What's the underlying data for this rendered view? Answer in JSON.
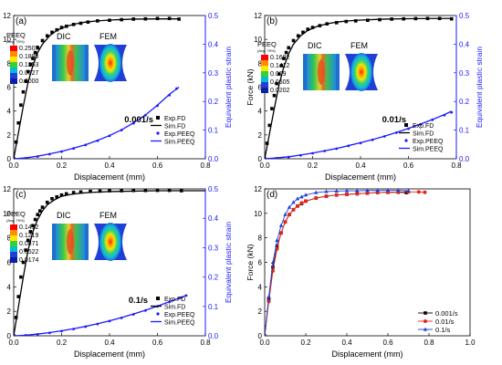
{
  "chart_data": [
    {
      "type": "scatter",
      "panel_label": "(a)",
      "rate_label": "0.001/s",
      "xlabel": "Displacement (mm)",
      "ylabel": "",
      "ylabel_right": "Equivalent plastic strain",
      "xlim": [
        0,
        0.8
      ],
      "ylim": [
        0,
        12
      ],
      "ylim_right": [
        0,
        0.5
      ],
      "x_ticks": [
        "0.0",
        "0.2",
        "0.4",
        "0.6",
        "0.8"
      ],
      "y_ticks": [
        "0",
        "2",
        "4",
        "6",
        "8",
        "10",
        "12"
      ],
      "y_ticks_right": [
        "0.0",
        "0.1",
        "0.2",
        "0.3",
        "0.4",
        "0.5"
      ],
      "legend": [
        "Exp.FD",
        "Sim.FD",
        "Exp.PEEQ",
        "Sim.PEEQ"
      ],
      "inset": {
        "title": "PEEQ",
        "subtitle": "(Avg: 75%)",
        "dic_label": "DIC",
        "fem_label": "FEM",
        "contour_values": [
          "0.2507",
          "0.1880",
          "0.1253",
          "0.0627",
          "0.0000"
        ]
      },
      "series": [
        {
          "name": "Exp.FD",
          "axis": "left",
          "style": "square",
          "x": [
            0.0,
            0.01,
            0.02,
            0.03,
            0.04,
            0.05,
            0.06,
            0.07,
            0.08,
            0.09,
            0.1,
            0.12,
            0.14,
            0.16,
            0.18,
            0.2,
            0.22,
            0.25,
            0.28,
            0.31,
            0.35,
            0.4,
            0.45,
            0.5,
            0.55,
            0.6,
            0.65,
            0.69
          ],
          "y": [
            0.0,
            1.4,
            3.0,
            4.5,
            5.6,
            6.5,
            7.3,
            7.9,
            8.4,
            8.9,
            9.3,
            9.9,
            10.3,
            10.6,
            10.8,
            11.0,
            11.1,
            11.25,
            11.35,
            11.45,
            11.55,
            11.6,
            11.65,
            11.7,
            11.72,
            11.75,
            11.75,
            11.7
          ]
        },
        {
          "name": "Sim.FD",
          "axis": "left",
          "style": "line",
          "x": [
            0.0,
            0.02,
            0.04,
            0.06,
            0.08,
            0.1,
            0.12,
            0.15,
            0.18,
            0.22,
            0.26,
            0.3,
            0.35,
            0.4,
            0.5,
            0.6,
            0.69
          ],
          "y": [
            0.0,
            2.2,
            4.4,
            6.4,
            7.8,
            8.9,
            9.6,
            10.3,
            10.75,
            11.1,
            11.3,
            11.45,
            11.55,
            11.62,
            11.7,
            11.72,
            11.72
          ]
        },
        {
          "name": "Exp.PEEQ",
          "axis": "right",
          "style": "point",
          "x": [
            0.0,
            0.05,
            0.1,
            0.15,
            0.2,
            0.25,
            0.3,
            0.35,
            0.4,
            0.45,
            0.5,
            0.55,
            0.6,
            0.65,
            0.68
          ],
          "y": [
            0.0,
            0.002,
            0.008,
            0.016,
            0.025,
            0.036,
            0.048,
            0.063,
            0.08,
            0.1,
            0.124,
            0.152,
            0.185,
            0.222,
            0.245
          ]
        },
        {
          "name": "Sim.PEEQ",
          "axis": "right",
          "style": "line",
          "x": [
            0.0,
            0.05,
            0.1,
            0.15,
            0.2,
            0.25,
            0.3,
            0.35,
            0.4,
            0.45,
            0.5,
            0.55,
            0.6,
            0.65,
            0.69
          ],
          "y": [
            0.0,
            0.003,
            0.009,
            0.017,
            0.026,
            0.037,
            0.049,
            0.064,
            0.081,
            0.101,
            0.125,
            0.153,
            0.187,
            0.225,
            0.25
          ]
        }
      ]
    },
    {
      "type": "scatter",
      "panel_label": "(b)",
      "rate_label": "0.01/s",
      "xlabel": "Displacement (mm)",
      "ylabel": "Force (kN)",
      "ylabel_right": "Equivalent plastic strain",
      "xlim": [
        0,
        0.8
      ],
      "ylim": [
        0,
        12
      ],
      "ylim_right": [
        0,
        0.5
      ],
      "x_ticks": [
        "0.0",
        "0.2",
        "0.4",
        "0.6",
        "0.8"
      ],
      "y_ticks": [
        "0",
        "2",
        "4",
        "6",
        "8",
        "10",
        "12"
      ],
      "y_ticks_right": [
        "0.0",
        "0.1",
        "0.2",
        "0.3",
        "0.4",
        "0.5"
      ],
      "legend": [
        "Exp.FD",
        "Sim.FD",
        "Exp.PEEQ",
        "Sim.PEEQ"
      ],
      "inset": {
        "title": "PEEQ",
        "subtitle": "(Avg: 75%)",
        "dic_label": "DIC",
        "fem_label": "FEM",
        "contour_values": [
          "0.1692",
          "0.1412",
          "0.009",
          "0.0605",
          "0.0202"
        ]
      },
      "series": [
        {
          "name": "Exp.FD",
          "axis": "left",
          "style": "square",
          "x": [
            0.0,
            0.01,
            0.02,
            0.03,
            0.04,
            0.05,
            0.06,
            0.07,
            0.08,
            0.09,
            0.1,
            0.12,
            0.14,
            0.16,
            0.18,
            0.2,
            0.23,
            0.26,
            0.3,
            0.34,
            0.38,
            0.43,
            0.48,
            0.53,
            0.58,
            0.63,
            0.68,
            0.73,
            0.78
          ],
          "y": [
            0.0,
            1.3,
            2.8,
            4.2,
            5.3,
            6.3,
            7.1,
            7.8,
            8.4,
            8.9,
            9.3,
            9.9,
            10.3,
            10.6,
            10.85,
            11.0,
            11.15,
            11.3,
            11.4,
            11.5,
            11.55,
            11.6,
            11.65,
            11.7,
            11.72,
            11.74,
            11.75,
            11.75,
            11.72
          ]
        },
        {
          "name": "Sim.FD",
          "axis": "left",
          "style": "line",
          "x": [
            0.0,
            0.02,
            0.04,
            0.06,
            0.08,
            0.1,
            0.12,
            0.15,
            0.18,
            0.22,
            0.26,
            0.3,
            0.35,
            0.4,
            0.5,
            0.6,
            0.7,
            0.78
          ],
          "y": [
            0.0,
            2.1,
            4.2,
            6.2,
            7.7,
            8.8,
            9.6,
            10.3,
            10.75,
            11.1,
            11.3,
            11.45,
            11.55,
            11.62,
            11.7,
            11.73,
            11.75,
            11.75
          ]
        },
        {
          "name": "Exp.PEEQ",
          "axis": "right",
          "style": "point",
          "x": [
            0.0,
            0.05,
            0.1,
            0.15,
            0.2,
            0.25,
            0.3,
            0.35,
            0.4,
            0.45,
            0.5,
            0.55,
            0.6,
            0.65,
            0.7,
            0.75,
            0.78
          ],
          "y": [
            0.0,
            0.002,
            0.006,
            0.012,
            0.019,
            0.027,
            0.035,
            0.045,
            0.055,
            0.066,
            0.078,
            0.091,
            0.105,
            0.12,
            0.136,
            0.152,
            0.162
          ]
        },
        {
          "name": "Sim.PEEQ",
          "axis": "right",
          "style": "line",
          "x": [
            0.0,
            0.05,
            0.1,
            0.15,
            0.2,
            0.25,
            0.3,
            0.35,
            0.4,
            0.45,
            0.5,
            0.55,
            0.6,
            0.65,
            0.7,
            0.75,
            0.78
          ],
          "y": [
            0.0,
            0.003,
            0.007,
            0.013,
            0.02,
            0.028,
            0.036,
            0.046,
            0.056,
            0.067,
            0.079,
            0.092,
            0.106,
            0.121,
            0.137,
            0.154,
            0.166
          ]
        }
      ]
    },
    {
      "type": "scatter",
      "panel_label": "(c)",
      "rate_label": "0.1/s",
      "xlabel": "Displacement (mm)",
      "ylabel": "",
      "ylabel_right": "Equivalent plastic strain",
      "xlim": [
        0,
        0.8
      ],
      "ylim": [
        0,
        12
      ],
      "ylim_right": [
        0,
        0.5
      ],
      "x_ticks": [
        "0.0",
        "0.2",
        "0.4",
        "0.6",
        "0.8"
      ],
      "y_ticks": [
        "0",
        "2",
        "4",
        "6",
        "8",
        "10",
        "12"
      ],
      "y_ticks_right": [
        "0.0",
        "0.1",
        "0.2",
        "0.3",
        "0.4",
        "0.5"
      ],
      "legend": [
        "Exp.FD",
        "Sim.FD",
        "Exp.PEEQ",
        "Sim.PEEQ"
      ],
      "inset": {
        "title": "PEEQ",
        "subtitle": "(Avg: 75%)",
        "dic_label": "DIC",
        "fem_label": "FEM",
        "contour_values": [
          "0.1412",
          "0.1219",
          "0.0871",
          "0.0522",
          "0.0174"
        ]
      },
      "series": [
        {
          "name": "Exp.FD",
          "axis": "left",
          "style": "square",
          "x": [
            0.0,
            0.01,
            0.02,
            0.03,
            0.04,
            0.05,
            0.06,
            0.07,
            0.08,
            0.09,
            0.1,
            0.11,
            0.12,
            0.14,
            0.16,
            0.18,
            0.2,
            0.22,
            0.25,
            0.28,
            0.32,
            0.36,
            0.4,
            0.45,
            0.5,
            0.55,
            0.6,
            0.65,
            0.7
          ],
          "y": [
            0.0,
            1.5,
            3.2,
            4.8,
            6.0,
            7.0,
            7.8,
            8.5,
            9.0,
            9.5,
            9.9,
            10.2,
            10.5,
            10.9,
            11.2,
            11.35,
            11.5,
            11.6,
            11.7,
            11.75,
            11.8,
            11.82,
            11.85,
            11.85,
            11.87,
            11.87,
            11.88,
            11.88,
            11.85
          ]
        },
        {
          "name": "Sim.FD",
          "axis": "left",
          "style": "line",
          "x": [
            0.0,
            0.02,
            0.04,
            0.06,
            0.08,
            0.1,
            0.12,
            0.14,
            0.17,
            0.2,
            0.24,
            0.28,
            0.33,
            0.4,
            0.5,
            0.6,
            0.7,
            0.8
          ],
          "y": [
            0.0,
            2.4,
            4.8,
            7.0,
            8.5,
            9.5,
            10.2,
            10.7,
            11.1,
            11.4,
            11.55,
            11.65,
            11.72,
            11.78,
            11.82,
            11.85,
            11.85,
            11.85
          ]
        },
        {
          "name": "Exp.PEEQ",
          "axis": "right",
          "style": "point",
          "x": [
            0.0,
            0.05,
            0.1,
            0.15,
            0.2,
            0.25,
            0.3,
            0.35,
            0.4,
            0.45,
            0.5,
            0.55,
            0.6,
            0.65,
            0.7,
            0.72
          ],
          "y": [
            0.0,
            0.002,
            0.005,
            0.01,
            0.016,
            0.023,
            0.031,
            0.04,
            0.05,
            0.061,
            0.073,
            0.086,
            0.1,
            0.115,
            0.13,
            0.137
          ]
        },
        {
          "name": "Sim.PEEQ",
          "axis": "right",
          "style": "line",
          "x": [
            0.0,
            0.05,
            0.1,
            0.15,
            0.2,
            0.25,
            0.3,
            0.35,
            0.4,
            0.45,
            0.5,
            0.55,
            0.6,
            0.65,
            0.7,
            0.72
          ],
          "y": [
            0.0,
            0.002,
            0.006,
            0.011,
            0.017,
            0.024,
            0.032,
            0.041,
            0.051,
            0.062,
            0.074,
            0.087,
            0.101,
            0.116,
            0.131,
            0.138
          ]
        }
      ]
    },
    {
      "type": "line",
      "panel_label": "(d)",
      "xlabel": "Displacement (mm)",
      "ylabel": "Force (kN)",
      "xlim": [
        0,
        1.0
      ],
      "ylim": [
        0,
        12
      ],
      "x_ticks": [
        "0.0",
        "0.2",
        "0.4",
        "0.6",
        "0.8",
        "1.0"
      ],
      "y_ticks": [
        "0",
        "2",
        "4",
        "6",
        "8",
        "10",
        "12"
      ],
      "legend": [
        "0.001/s",
        "0.01/s",
        "0.1/s"
      ],
      "series": [
        {
          "name": "0.001/s",
          "color": "#000000",
          "marker": "square",
          "x": [
            0.0,
            0.02,
            0.04,
            0.06,
            0.08,
            0.1,
            0.12,
            0.14,
            0.16,
            0.18,
            0.2,
            0.25,
            0.3,
            0.35,
            0.4,
            0.45,
            0.5,
            0.55,
            0.6,
            0.65,
            0.69
          ],
          "y": [
            0.0,
            3.0,
            5.6,
            7.3,
            8.4,
            9.3,
            9.9,
            10.3,
            10.6,
            10.8,
            11.0,
            11.25,
            11.4,
            11.5,
            11.55,
            11.6,
            11.65,
            11.7,
            11.72,
            11.72,
            11.7
          ]
        },
        {
          "name": "0.01/s",
          "color": "#e8251c",
          "marker": "circle",
          "x": [
            0.0,
            0.02,
            0.04,
            0.06,
            0.08,
            0.1,
            0.12,
            0.14,
            0.16,
            0.18,
            0.2,
            0.25,
            0.3,
            0.35,
            0.4,
            0.45,
            0.5,
            0.55,
            0.6,
            0.65,
            0.7,
            0.75,
            0.78
          ],
          "y": [
            0.0,
            2.8,
            5.3,
            7.1,
            8.4,
            9.3,
            9.9,
            10.3,
            10.6,
            10.85,
            11.0,
            11.25,
            11.4,
            11.5,
            11.55,
            11.6,
            11.65,
            11.7,
            11.72,
            11.74,
            11.75,
            11.75,
            11.72
          ]
        },
        {
          "name": "0.1/s",
          "color": "#1f3fd6",
          "marker": "triangle",
          "x": [
            0.0,
            0.02,
            0.04,
            0.06,
            0.08,
            0.1,
            0.12,
            0.14,
            0.16,
            0.18,
            0.2,
            0.25,
            0.3,
            0.35,
            0.4,
            0.45,
            0.5,
            0.55,
            0.6,
            0.65,
            0.7
          ],
          "y": [
            0.0,
            3.2,
            6.0,
            7.8,
            9.0,
            9.9,
            10.5,
            10.9,
            11.2,
            11.35,
            11.5,
            11.7,
            11.78,
            11.82,
            11.85,
            11.85,
            11.87,
            11.87,
            11.88,
            11.88,
            11.85
          ]
        }
      ]
    }
  ]
}
